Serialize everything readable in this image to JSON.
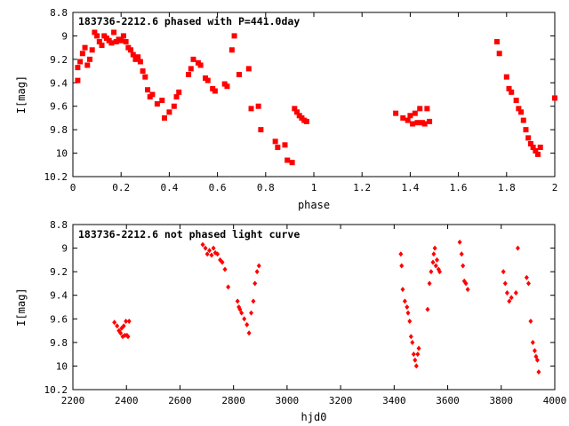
{
  "colors": {
    "points": "#ff0000",
    "axes": "#000000",
    "background": "#ffffff"
  },
  "chart_data": [
    {
      "type": "scatter",
      "title": "183736-2212.6 phased with P=441.0day",
      "xlabel": "phase",
      "ylabel": "I[mag]",
      "xlim": [
        0,
        2
      ],
      "ylim": [
        8.8,
        10.2
      ],
      "y_inverted": true,
      "grid": false,
      "x_ticks": [
        "0",
        "0.2",
        "0.4",
        "0.6",
        "0.8",
        "1",
        "1.2",
        "1.4",
        "1.6",
        "1.8",
        "2"
      ],
      "y_ticks": [
        "8.8",
        "9",
        "9.2",
        "9.4",
        "9.6",
        "9.8",
        "10",
        "10.2"
      ],
      "marker": "square",
      "series": [
        {
          "x": [
            0.02,
            0.02,
            0.03,
            0.04,
            0.05,
            0.06,
            0.07,
            0.08,
            0.09,
            0.1,
            0.11,
            0.12,
            0.13,
            0.14,
            0.15,
            0.16,
            0.17,
            0.18,
            0.19,
            0.2,
            0.21,
            0.22,
            0.23,
            0.24,
            0.25,
            0.26,
            0.27,
            0.28,
            0.29,
            0.3,
            0.31,
            0.32,
            0.33,
            0.35,
            0.37,
            0.38,
            0.4,
            0.42,
            0.43,
            0.44,
            0.48,
            0.49,
            0.5,
            0.52,
            0.53,
            0.55,
            0.56,
            0.58,
            0.59,
            0.63,
            0.64,
            0.66,
            0.67,
            0.69,
            0.73,
            0.74,
            0.77,
            0.78,
            0.84,
            0.85,
            0.88,
            0.89,
            0.91,
            0.92,
            0.93,
            0.94,
            0.95,
            0.96,
            0.97,
            1.34,
            1.37,
            1.39,
            1.4,
            1.41,
            1.42,
            1.43,
            1.44,
            1.45,
            1.46,
            1.47,
            1.48,
            1.76,
            1.77,
            1.8,
            1.81,
            1.82,
            1.84,
            1.85,
            1.86,
            1.87,
            1.88,
            1.89,
            1.9,
            1.91,
            1.92,
            1.93,
            1.94,
            2.0
          ],
          "y": [
            9.38,
            9.27,
            9.22,
            9.15,
            9.1,
            9.25,
            9.2,
            9.12,
            8.97,
            9.0,
            9.05,
            9.08,
            9.0,
            9.02,
            9.04,
            9.06,
            8.97,
            9.05,
            9.03,
            9.04,
            9.0,
            9.05,
            9.1,
            9.12,
            9.16,
            9.2,
            9.18,
            9.22,
            9.3,
            9.35,
            9.46,
            9.52,
            9.5,
            9.58,
            9.55,
            9.7,
            9.65,
            9.6,
            9.52,
            9.48,
            9.33,
            9.28,
            9.2,
            9.23,
            9.25,
            9.36,
            9.38,
            9.45,
            9.47,
            9.41,
            9.43,
            9.12,
            9.0,
            9.33,
            9.28,
            9.62,
            9.6,
            9.8,
            9.9,
            9.95,
            9.93,
            10.06,
            10.08,
            9.62,
            9.65,
            9.68,
            9.7,
            9.72,
            9.73,
            9.66,
            9.7,
            9.72,
            9.68,
            9.75,
            9.66,
            9.74,
            9.62,
            9.74,
            9.75,
            9.62,
            9.73,
            9.05,
            9.15,
            9.35,
            9.45,
            9.48,
            9.55,
            9.62,
            9.65,
            9.72,
            9.8,
            9.87,
            9.92,
            9.95,
            9.98,
            10.01,
            9.95,
            9.53
          ]
        }
      ]
    },
    {
      "type": "scatter",
      "title": "183736-2212.6 not phased light curve",
      "xlabel": "hjd0",
      "ylabel": "I[mag]",
      "xlim": [
        2200,
        4000
      ],
      "ylim": [
        8.8,
        10.2
      ],
      "y_inverted": true,
      "grid": false,
      "x_ticks": [
        "2200",
        "2400",
        "2600",
        "2800",
        "3000",
        "3200",
        "3400",
        "3600",
        "3800",
        "4000"
      ],
      "y_ticks": [
        "8.8",
        "9",
        "9.2",
        "9.4",
        "9.6",
        "9.8",
        "10",
        "10.2"
      ],
      "marker": "diamond",
      "series": [
        {
          "x": [
            2355,
            2365,
            2372,
            2378,
            2382,
            2386,
            2390,
            2394,
            2398,
            2402,
            2406,
            2410,
            2685,
            2695,
            2702,
            2710,
            2718,
            2725,
            2732,
            2740,
            2750,
            2758,
            2768,
            2780,
            2815,
            2820,
            2824,
            2830,
            2840,
            2850,
            2858,
            2866,
            2874,
            2880,
            2888,
            2895,
            3425,
            3428,
            3432,
            3440,
            3448,
            3452,
            3458,
            3463,
            3468,
            3473,
            3478,
            3483,
            3488,
            3492,
            3525,
            3532,
            3538,
            3545,
            3548,
            3552,
            3556,
            3560,
            3566,
            3570,
            3645,
            3652,
            3657,
            3662,
            3668,
            3675,
            3808,
            3815,
            3822,
            3830,
            3838,
            3855,
            3862,
            3895,
            3902,
            3910,
            3918,
            3925,
            3930,
            3935,
            3940
          ],
          "y": [
            9.63,
            9.66,
            9.7,
            9.72,
            9.68,
            9.75,
            9.66,
            9.74,
            9.62,
            9.74,
            9.75,
            9.62,
            8.97,
            9.0,
            9.05,
            9.02,
            9.06,
            9.0,
            9.04,
            9.05,
            9.1,
            9.12,
            9.18,
            9.33,
            9.45,
            9.5,
            9.52,
            9.55,
            9.6,
            9.65,
            9.72,
            9.55,
            9.45,
            9.3,
            9.2,
            9.15,
            9.05,
            9.15,
            9.35,
            9.45,
            9.5,
            9.55,
            9.62,
            9.75,
            9.8,
            9.9,
            9.95,
            10.0,
            9.9,
            9.85,
            9.52,
            9.3,
            9.2,
            9.12,
            9.05,
            9.0,
            9.15,
            9.1,
            9.18,
            9.2,
            8.95,
            9.05,
            9.15,
            9.28,
            9.3,
            9.35,
            9.2,
            9.3,
            9.38,
            9.45,
            9.42,
            9.38,
            9.0,
            9.25,
            9.3,
            9.62,
            9.8,
            9.87,
            9.92,
            9.95,
            10.05
          ]
        }
      ]
    }
  ]
}
